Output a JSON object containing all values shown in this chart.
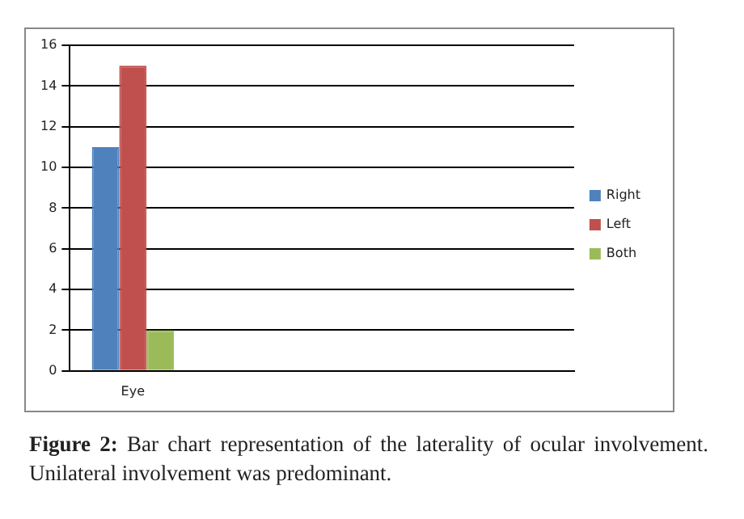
{
  "chart_data": {
    "type": "bar",
    "categories": [
      "Eye",
      null,
      null,
      null
    ],
    "series": [
      {
        "name": "Right",
        "color": "#4f81bd",
        "values": [
          11,
          null,
          null,
          null
        ]
      },
      {
        "name": "Left",
        "color": "#c0504d",
        "values": [
          15,
          null,
          null,
          null
        ]
      },
      {
        "name": "Both",
        "color": "#9bbb59",
        "values": [
          2,
          null,
          null,
          null
        ]
      }
    ],
    "ylim": [
      0,
      16
    ],
    "yticks": [
      0,
      2,
      4,
      6,
      8,
      10,
      12,
      14,
      16
    ],
    "grid": "y",
    "legend": "right",
    "annotations": [
      "Figure 2:",
      "Bar chart representation of the laterality of ocular involvement. Unilateral involvement was predominant."
    ]
  }
}
